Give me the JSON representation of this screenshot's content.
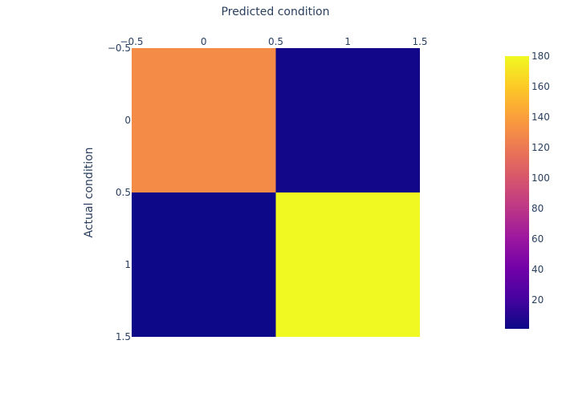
{
  "chart_data": {
    "type": "heatmap",
    "title": "",
    "xlabel": "Predicted condition",
    "ylabel": "Actual condition",
    "x_categories": [
      0,
      1
    ],
    "y_categories": [
      0,
      1
    ],
    "z": [
      [
        130,
        3
      ],
      [
        1,
        180
      ]
    ],
    "colorscale": "plasma",
    "zrange": [
      1,
      180
    ],
    "x_ticks": [
      "−0.5",
      "0",
      "0.5",
      "1",
      "1.5"
    ],
    "x_tick_values": [
      -0.5,
      0,
      0.5,
      1,
      1.5
    ],
    "y_ticks": [
      "−0.5",
      "0",
      "0.5",
      "1",
      "1.5"
    ],
    "y_tick_values": [
      -0.5,
      0,
      0.5,
      1,
      1.5
    ],
    "colorbar_ticks": [
      "20",
      "40",
      "60",
      "80",
      "100",
      "120",
      "140",
      "160",
      "180"
    ],
    "colorbar_tick_values": [
      20,
      40,
      60,
      80,
      100,
      120,
      140,
      160,
      180
    ],
    "x_axis_position": "top",
    "grid": false
  }
}
